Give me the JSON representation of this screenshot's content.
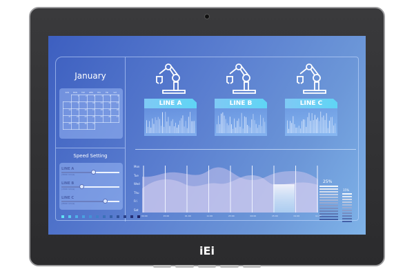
{
  "device": {
    "brand_logo": "iEi"
  },
  "calendar": {
    "month": "January",
    "weekdays": [
      "SUN",
      "MON",
      "TUE",
      "WED",
      "THU",
      "FRI",
      "SAT"
    ],
    "weeks": [
      [
        "",
        "1",
        "2",
        "3",
        "4",
        "5",
        "6"
      ],
      [
        "7",
        "8",
        "9",
        "10",
        "11",
        "12",
        "13"
      ],
      [
        "14",
        "15",
        "16",
        "17",
        "18",
        "19",
        "20"
      ],
      [
        "21",
        "22",
        "23",
        "24",
        "25",
        "26",
        "27"
      ],
      [
        "28",
        "29",
        "30",
        "31",
        "",
        "",
        ""
      ]
    ]
  },
  "speed_setting": {
    "title": "Speed Setting",
    "lines": [
      {
        "label": "LINE A",
        "value": "(3000 mm/s)",
        "level": 0.55
      },
      {
        "label": "LINE B",
        "value": "(1500 mm/s)",
        "level": 0.35
      },
      {
        "label": "LINE C",
        "value": "(4500 mm/s)",
        "level": 0.75
      }
    ]
  },
  "lines": [
    {
      "label": "LINE A",
      "icon": "robot-arm-icon"
    },
    {
      "label": "LINE B",
      "icon": "robot-arm-icon"
    },
    {
      "label": "LINE C",
      "icon": "robot-arm-icon"
    }
  ],
  "chart": {
    "y_labels": [
      "Mon",
      "Tue",
      "Wed",
      "Thu",
      "Fri",
      "Sat"
    ],
    "x_labels": [
      "04:00",
      "15:00",
      "01:00",
      "11:00",
      "23:00",
      "04:00",
      "15:00",
      "01:00",
      "11:00"
    ],
    "gauges": [
      {
        "label": "25%",
        "level": 0.25
      },
      {
        "label": "15%",
        "level": 0.15
      }
    ]
  },
  "colors": {
    "accent": "#5fd5f5",
    "screen": "#4f74cc",
    "bezel": "#333335"
  }
}
